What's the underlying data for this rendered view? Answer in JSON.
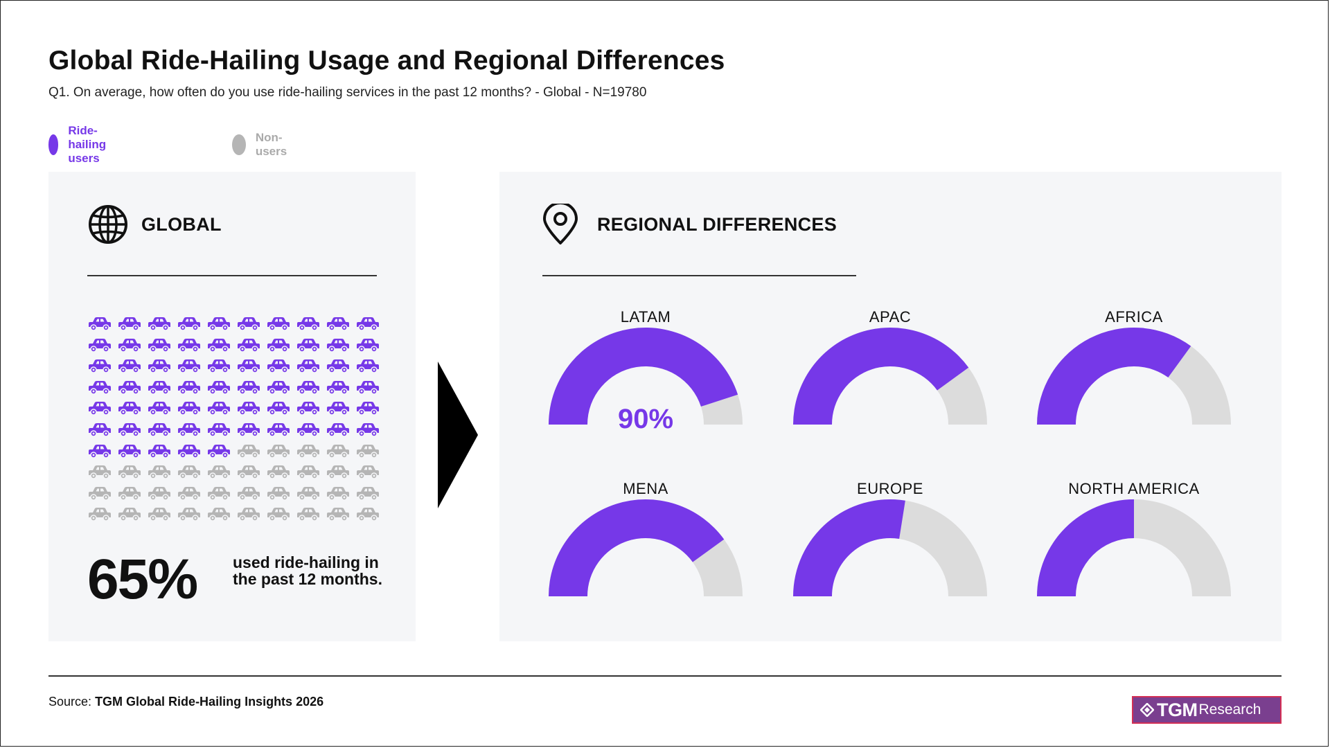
{
  "header": {
    "title": "Global Ride-Hailing Usage and Regional Differences",
    "subtitle": "Q1. On average, how often do you use ride-hailing services in the past 12 months? - Global - N=19780"
  },
  "legend": [
    {
      "label": "Ride-hailing users",
      "color": "#7638e8"
    },
    {
      "label": "Non-users",
      "color": "#b5b5b5"
    }
  ],
  "global_panel": {
    "heading": "GLOBAL",
    "icon": "globe-icon",
    "big_value": "65%",
    "description": "used ride-hailing in the past 12 months."
  },
  "regional_panel": {
    "heading": "REGIONAL DIFFERENCES",
    "icon": "location-pin-icon"
  },
  "chart_data": [
    {
      "type": "pictogram",
      "title": "GLOBAL",
      "total_icons": 100,
      "users_percent": 65,
      "categories": [
        "Ride-hailing users",
        "Non-users"
      ],
      "values": [
        65,
        35
      ],
      "colors": {
        "users": "#7638e8",
        "non_users": "#b5b5b5"
      }
    },
    {
      "type": "gauge",
      "title": "REGIONAL DIFFERENCES",
      "series": [
        {
          "region": "LATAM",
          "users_percent": 90,
          "value_label": "90%"
        },
        {
          "region": "APAC",
          "users_percent": 80,
          "value_label": ""
        },
        {
          "region": "AFRICA",
          "users_percent": 70,
          "value_label": ""
        },
        {
          "region": "MENA",
          "users_percent": 80,
          "value_label": ""
        },
        {
          "region": "EUROPE",
          "users_percent": 55,
          "value_label": ""
        },
        {
          "region": "NORTH AMERICA",
          "users_percent": 50,
          "value_label": ""
        }
      ],
      "colors": {
        "users": "#7638e8",
        "non_users": "#dcdcdc"
      }
    }
  ],
  "footer": {
    "source_prefix": "Source:",
    "source_name": "TGM Global Ride-Hailing Insights 2026",
    "logo_main": "TGM",
    "logo_sub": "Research"
  }
}
